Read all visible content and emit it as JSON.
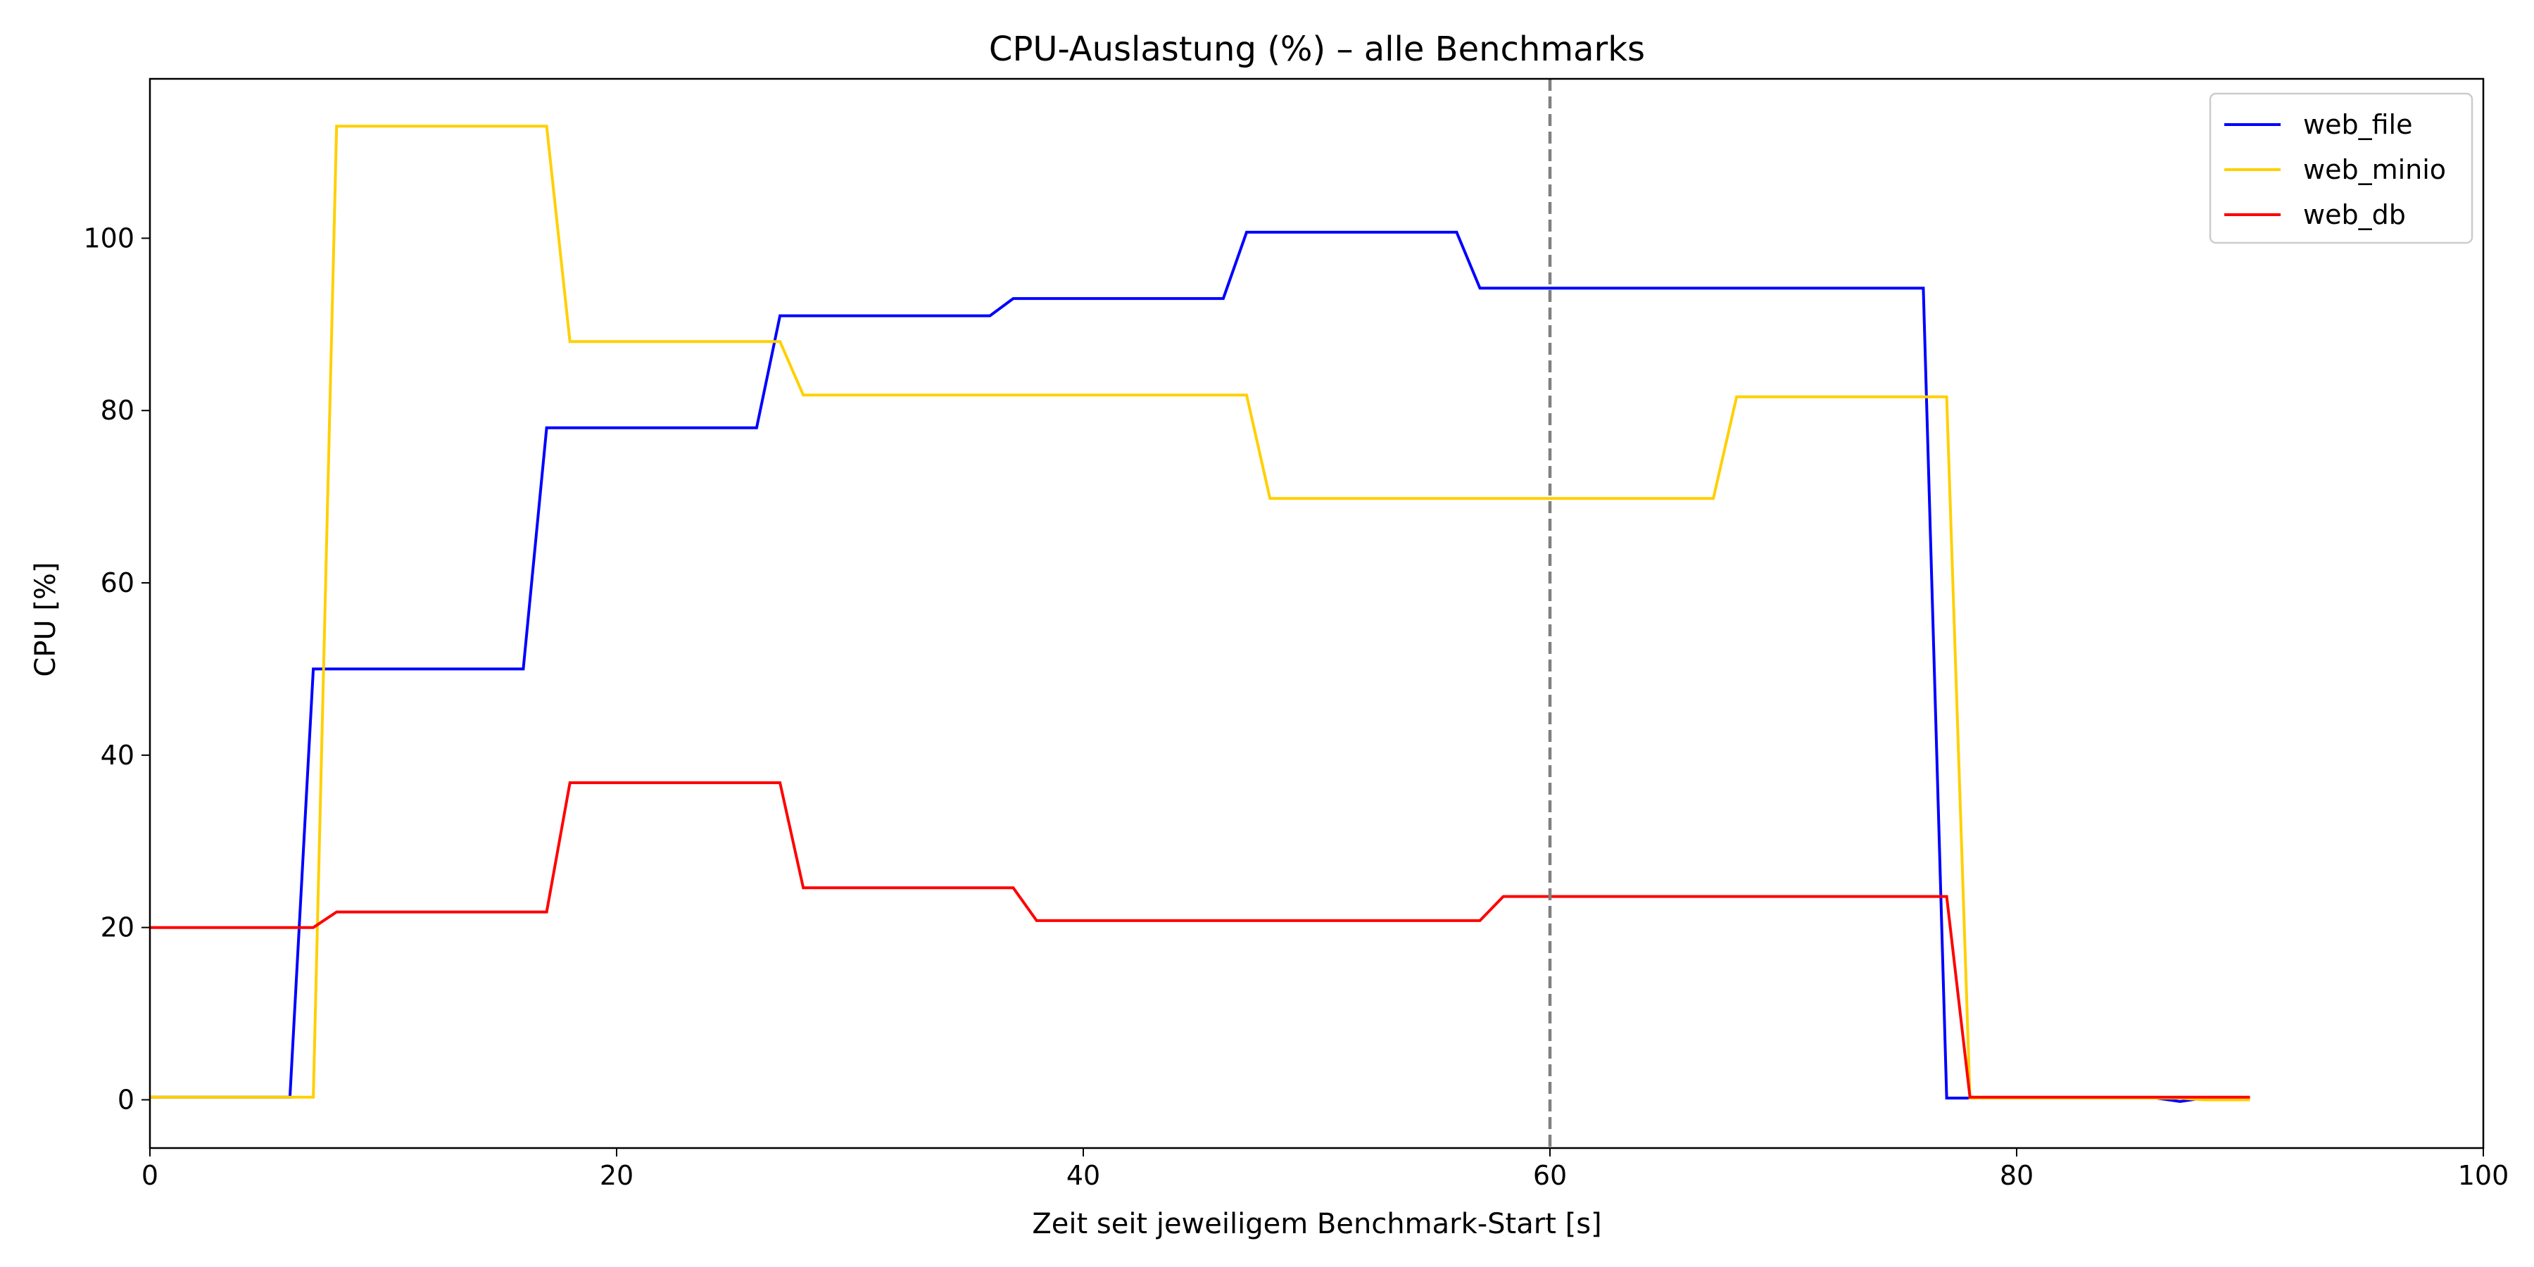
{
  "chart_data": {
    "type": "line",
    "title": "CPU-Auslastung (%) – alle Benchmarks",
    "xlabel": "Zeit seit jeweiligem Benchmark-Start [s]",
    "ylabel": "CPU [%]",
    "xlim": [
      0,
      100
    ],
    "ylim": [
      -5.6,
      118.5
    ],
    "xticks": [
      0,
      20,
      40,
      60,
      80,
      100
    ],
    "yticks": [
      0,
      20,
      40,
      60,
      80,
      100
    ],
    "grid": false,
    "legend_position": "top-right",
    "vline": {
      "x": 60,
      "color": "#808080",
      "style": "dashed"
    },
    "series": [
      {
        "name": "web_file",
        "color": "#0000ff",
        "points": [
          [
            0,
            0.3
          ],
          [
            6,
            0.3
          ],
          [
            7,
            50
          ],
          [
            16,
            50
          ],
          [
            17,
            78
          ],
          [
            26,
            78
          ],
          [
            27,
            91
          ],
          [
            36,
            91
          ],
          [
            37,
            93
          ],
          [
            46,
            93
          ],
          [
            47,
            100.7
          ],
          [
            56,
            100.7
          ],
          [
            57,
            94.2
          ],
          [
            76,
            94.2
          ],
          [
            77,
            0.2
          ],
          [
            86,
            0.2
          ],
          [
            87,
            -0.2
          ],
          [
            88,
            0.2
          ],
          [
            90,
            0.2
          ]
        ]
      },
      {
        "name": "web_minio",
        "color": "#ffd000",
        "points": [
          [
            0,
            0.3
          ],
          [
            7,
            0.3
          ],
          [
            8,
            113
          ],
          [
            17,
            113
          ],
          [
            18,
            88
          ],
          [
            27,
            88
          ],
          [
            28,
            81.8
          ],
          [
            47,
            81.8
          ],
          [
            48,
            69.8
          ],
          [
            67,
            69.8
          ],
          [
            68,
            81.6
          ],
          [
            77,
            81.6
          ],
          [
            78,
            0.2
          ],
          [
            87,
            0.2
          ],
          [
            88,
            0.0
          ],
          [
            90,
            0.0
          ]
        ]
      },
      {
        "name": "web_db",
        "color": "#ff0000",
        "points": [
          [
            0,
            20
          ],
          [
            7,
            20
          ],
          [
            8,
            21.8
          ],
          [
            17,
            21.8
          ],
          [
            18,
            36.8
          ],
          [
            27,
            36.8
          ],
          [
            28,
            24.6
          ],
          [
            37,
            24.6
          ],
          [
            38,
            20.8
          ],
          [
            57,
            20.8
          ],
          [
            58,
            23.6
          ],
          [
            77,
            23.6
          ],
          [
            78,
            0.3
          ],
          [
            90,
            0.3
          ]
        ]
      }
    ]
  }
}
